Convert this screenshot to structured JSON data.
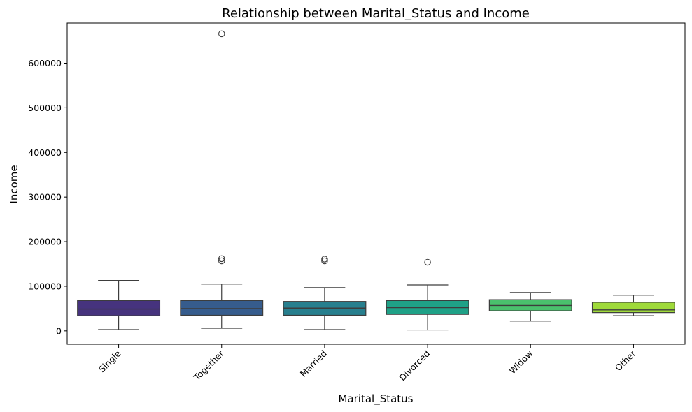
{
  "chart_data": {
    "type": "box",
    "title": "Relationship between Marital_Status and Income",
    "xlabel": "Marital_Status",
    "ylabel": "Income",
    "ylim": [
      -30000,
      690000
    ],
    "yticks": [
      0,
      100000,
      200000,
      300000,
      400000,
      500000,
      600000
    ],
    "ytick_labels": [
      "0",
      "100000",
      "200000",
      "300000",
      "400000",
      "500000",
      "600000"
    ],
    "grid": false,
    "legend": "none",
    "categories": [
      "Single",
      "Together",
      "Married",
      "Divorced",
      "Widow",
      "Other"
    ],
    "series": [
      {
        "category": "Single",
        "color": "#46337e",
        "whisker_low": 3000,
        "q1": 34000,
        "median": 49000,
        "q3": 68000,
        "whisker_high": 113000,
        "outliers": []
      },
      {
        "category": "Together",
        "color": "#365c8d",
        "whisker_low": 6000,
        "q1": 35000,
        "median": 50000,
        "q3": 68000,
        "whisker_high": 105000,
        "outliers": [
          666000,
          162000,
          157000
        ]
      },
      {
        "category": "Married",
        "color": "#277f8e",
        "whisker_low": 3000,
        "q1": 35000,
        "median": 51000,
        "q3": 66000,
        "whisker_high": 97000,
        "outliers": [
          161000,
          157000
        ]
      },
      {
        "category": "Divorced",
        "color": "#1fa187",
        "whisker_low": 2000,
        "q1": 37000,
        "median": 52000,
        "q3": 68000,
        "whisker_high": 103000,
        "outliers": [
          154000
        ]
      },
      {
        "category": "Widow",
        "color": "#4ac16d",
        "whisker_low": 22000,
        "q1": 45000,
        "median": 57000,
        "q3": 70000,
        "whisker_high": 86000,
        "outliers": []
      },
      {
        "category": "Other",
        "color": "#9fda3a",
        "whisker_low": 34000,
        "q1": 41000,
        "median": 47000,
        "q3": 64000,
        "whisker_high": 80000,
        "outliers": []
      }
    ]
  }
}
